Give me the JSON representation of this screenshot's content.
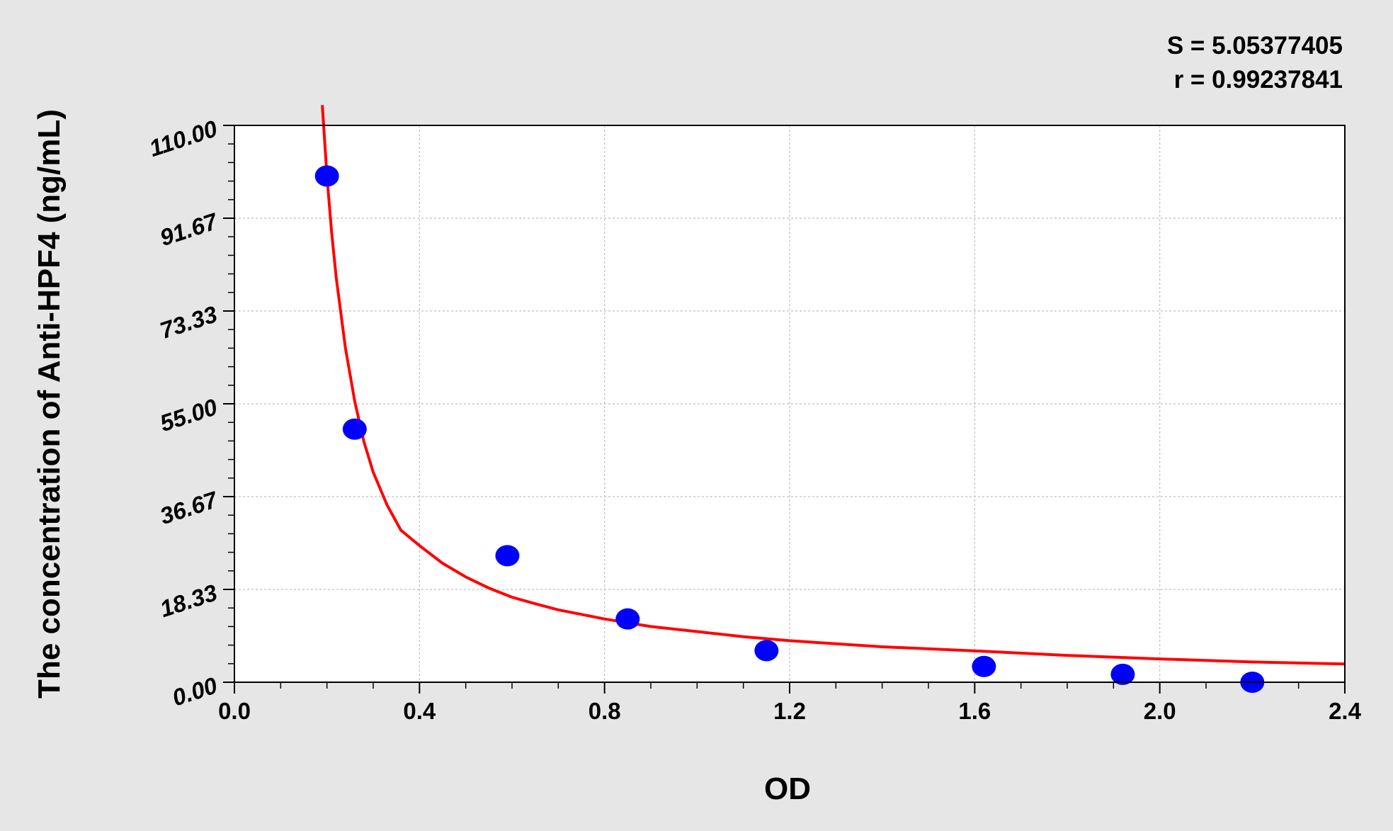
{
  "chart_data": {
    "type": "scatter",
    "xlabel": "OD",
    "ylabel": "The concentration of Anti-HPF4 (ng/mL)",
    "xlim": [
      0.0,
      2.4
    ],
    "ylim": [
      0.0,
      110.0
    ],
    "x_ticks": [
      "0.0",
      "0.4",
      "0.8",
      "1.2",
      "1.6",
      "2.0",
      "2.4"
    ],
    "y_ticks": [
      "0.00",
      "18.33",
      "36.67",
      "55.00",
      "73.33",
      "91.67",
      "110.00"
    ],
    "grid": true,
    "stats": [
      "S = 5.05377405",
      "r = 0.99237841"
    ],
    "colors": {
      "points": "#0000ff",
      "curve": "#ff0000",
      "grid": "#bfbfbf"
    },
    "points": [
      {
        "x": 0.2,
        "y": 100.0
      },
      {
        "x": 0.26,
        "y": 50.0
      },
      {
        "x": 0.59,
        "y": 25.0
      },
      {
        "x": 0.85,
        "y": 12.5
      },
      {
        "x": 1.15,
        "y": 6.25
      },
      {
        "x": 1.62,
        "y": 3.12
      },
      {
        "x": 1.92,
        "y": 1.56
      },
      {
        "x": 2.2,
        "y": 0.0
      }
    ],
    "curve": [
      {
        "x": 0.19,
        "y": 114.0
      },
      {
        "x": 0.2,
        "y": 100.0
      },
      {
        "x": 0.21,
        "y": 89.0
      },
      {
        "x": 0.22,
        "y": 80.0
      },
      {
        "x": 0.24,
        "y": 66.0
      },
      {
        "x": 0.26,
        "y": 55.5
      },
      {
        "x": 0.28,
        "y": 47.5
      },
      {
        "x": 0.3,
        "y": 41.5
      },
      {
        "x": 0.33,
        "y": 35.0
      },
      {
        "x": 0.36,
        "y": 30.0
      },
      {
        "x": 0.4,
        "y": 27.0
      },
      {
        "x": 0.45,
        "y": 23.5
      },
      {
        "x": 0.5,
        "y": 20.8
      },
      {
        "x": 0.55,
        "y": 18.6
      },
      {
        "x": 0.6,
        "y": 16.8
      },
      {
        "x": 0.65,
        "y": 15.5
      },
      {
        "x": 0.7,
        "y": 14.3
      },
      {
        "x": 0.8,
        "y": 12.5
      },
      {
        "x": 0.9,
        "y": 11.0
      },
      {
        "x": 1.0,
        "y": 10.0
      },
      {
        "x": 1.1,
        "y": 9.0
      },
      {
        "x": 1.2,
        "y": 8.2
      },
      {
        "x": 1.4,
        "y": 7.0
      },
      {
        "x": 1.6,
        "y": 6.2
      },
      {
        "x": 1.8,
        "y": 5.3
      },
      {
        "x": 2.0,
        "y": 4.6
      },
      {
        "x": 2.2,
        "y": 4.0
      },
      {
        "x": 2.4,
        "y": 3.6
      }
    ]
  }
}
